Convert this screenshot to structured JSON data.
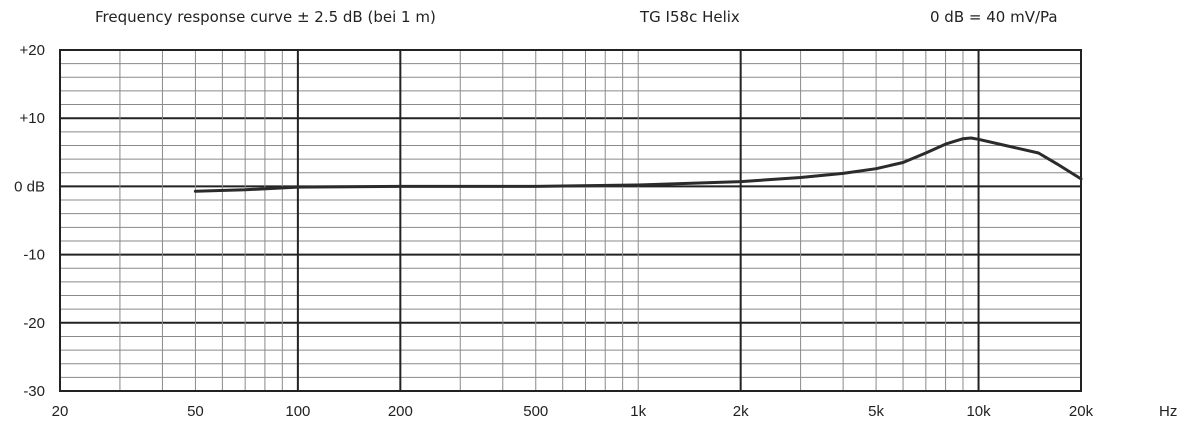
{
  "header": {
    "caption": "Frequency response curve ± 2.5 dB (bei 1 m)",
    "model": "TG I58c Helix",
    "reference": "0 dB = 40 mV/Pa"
  },
  "chart_data": {
    "type": "line",
    "title": "",
    "xlabel": "",
    "ylabel": "",
    "x_scale": "log",
    "xlim": [
      20,
      20000
    ],
    "ylim": [
      -30,
      20
    ],
    "grid": true,
    "x_ticks": [
      {
        "value": 20,
        "label": "20"
      },
      {
        "value": 50,
        "label": "50"
      },
      {
        "value": 100,
        "label": "100"
      },
      {
        "value": 200,
        "label": "200"
      },
      {
        "value": 500,
        "label": "500"
      },
      {
        "value": 1000,
        "label": "1k"
      },
      {
        "value": 2000,
        "label": "2k"
      },
      {
        "value": 5000,
        "label": "5k"
      },
      {
        "value": 10000,
        "label": "10k"
      },
      {
        "value": 20000,
        "label": "20k"
      }
    ],
    "x_unit_label": "Hz",
    "y_ticks": [
      {
        "value": 20,
        "label": "+20"
      },
      {
        "value": 10,
        "label": "+10"
      },
      {
        "value": 0,
        "label": "0 dB"
      },
      {
        "value": -10,
        "label": "-10"
      },
      {
        "value": -20,
        "label": "-20"
      },
      {
        "value": -30,
        "label": "-30"
      }
    ],
    "series": [
      {
        "color": "#2b2b2b",
        "x": [
          50,
          70,
          100,
          200,
          500,
          1000,
          2000,
          3000,
          4000,
          5000,
          6000,
          7000,
          8000,
          9000,
          9500,
          10000,
          12000,
          15000,
          17000,
          20000
        ],
        "y": [
          -0.7,
          -0.5,
          -0.1,
          0.0,
          0.0,
          0.2,
          0.7,
          1.3,
          1.9,
          2.6,
          3.5,
          4.9,
          6.2,
          7.0,
          7.1,
          6.9,
          6.0,
          4.9,
          3.3,
          1.1
        ]
      }
    ]
  }
}
